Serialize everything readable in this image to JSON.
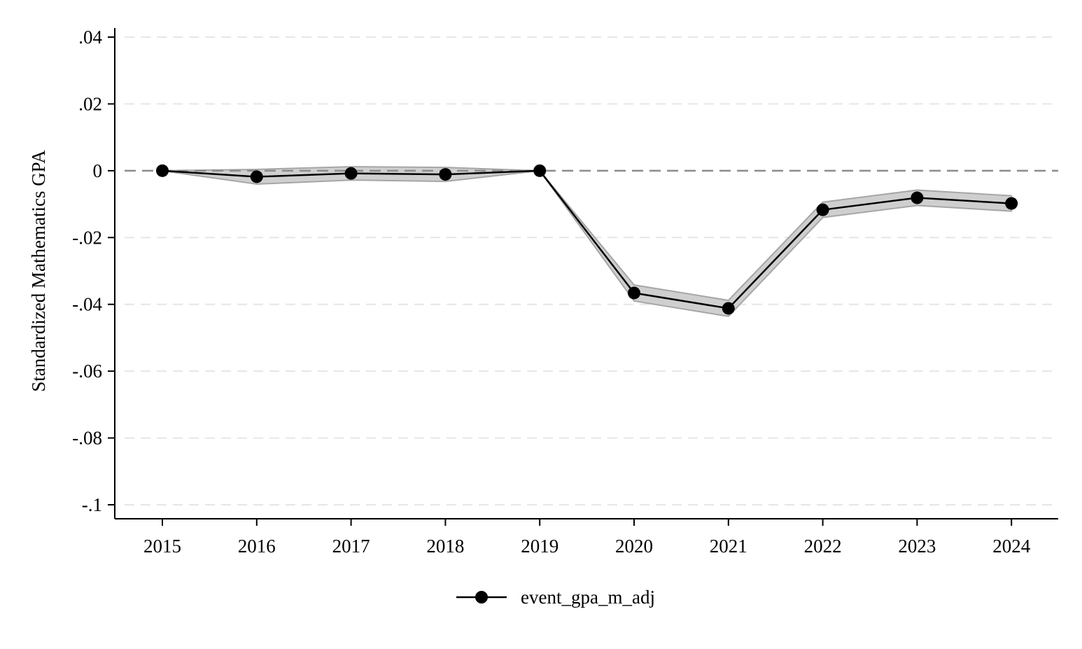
{
  "chart_data": {
    "type": "line",
    "title": "",
    "xlabel": "",
    "ylabel": "Standardized Mathematics GPA",
    "x": [
      "2015",
      "2016",
      "2017",
      "2018",
      "2019",
      "2020",
      "2021",
      "2022",
      "2023",
      "2024"
    ],
    "ylim": [
      -0.1,
      0.04
    ],
    "yticks": [
      0.04,
      0.02,
      0,
      -0.02,
      -0.04,
      -0.06,
      -0.08,
      -0.1
    ],
    "ytick_labels": [
      ".04",
      ".02",
      "0",
      "-.02",
      "-.04",
      "-.06",
      "-.08",
      "-.1"
    ],
    "reference_line": 0,
    "grid": "horizontal dashed",
    "legend_position": "bottom-center",
    "series": [
      {
        "name": "event_gpa_m_adj",
        "values": [
          0,
          -0.0018,
          -0.0008,
          -0.0011,
          0,
          -0.0366,
          -0.0412,
          -0.0117,
          -0.0081,
          -0.0098
        ],
        "ci_lower": [
          0,
          -0.004,
          -0.0028,
          -0.0032,
          0,
          -0.039,
          -0.0436,
          -0.014,
          -0.0104,
          -0.0121
        ],
        "ci_upper": [
          0,
          0.0004,
          0.0012,
          0.001,
          0,
          -0.0342,
          -0.0388,
          -0.0094,
          -0.0058,
          -0.0075
        ]
      }
    ],
    "colors": {
      "line": "#000000",
      "ci_fill": "#cfcfcf",
      "ci_edge": "#a6a6a6",
      "grid": "#e6e6e6",
      "reference": "#8c8c8c"
    }
  }
}
